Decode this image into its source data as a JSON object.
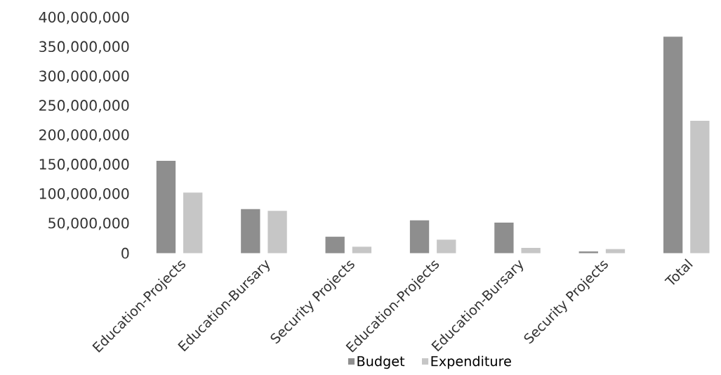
{
  "chart_data": {
    "type": "bar",
    "categories": [
      "Education-Projects",
      "Education-Bursary",
      "Security Projects",
      "Education-Projects",
      "Education-Bursary",
      "Security Projects",
      "Total"
    ],
    "series": [
      {
        "name": "Budget",
        "color": "#8e8e8e",
        "values": [
          157000000,
          75000000,
          28000000,
          56000000,
          52000000,
          3000000,
          368000000
        ]
      },
      {
        "name": "Expenditure",
        "color": "#c6c6c6",
        "values": [
          103000000,
          72000000,
          11000000,
          23000000,
          9000000,
          7000000,
          225000000
        ]
      }
    ],
    "ylim": [
      0,
      400000000
    ],
    "yticks": [
      {
        "value": 0,
        "label": "0"
      },
      {
        "value": 50000000,
        "label": "50,000,000"
      },
      {
        "value": 100000000,
        "label": "100,000,000"
      },
      {
        "value": 150000000,
        "label": "150,000,000"
      },
      {
        "value": 200000000,
        "label": "200,000,000"
      },
      {
        "value": 250000000,
        "label": "250,000,000"
      },
      {
        "value": 300000000,
        "label": "300,000,000"
      },
      {
        "value": 350000000,
        "label": "350,000,000"
      },
      {
        "value": 400000000,
        "label": "400,000,000"
      }
    ],
    "grid": false,
    "legend": "bottom"
  }
}
